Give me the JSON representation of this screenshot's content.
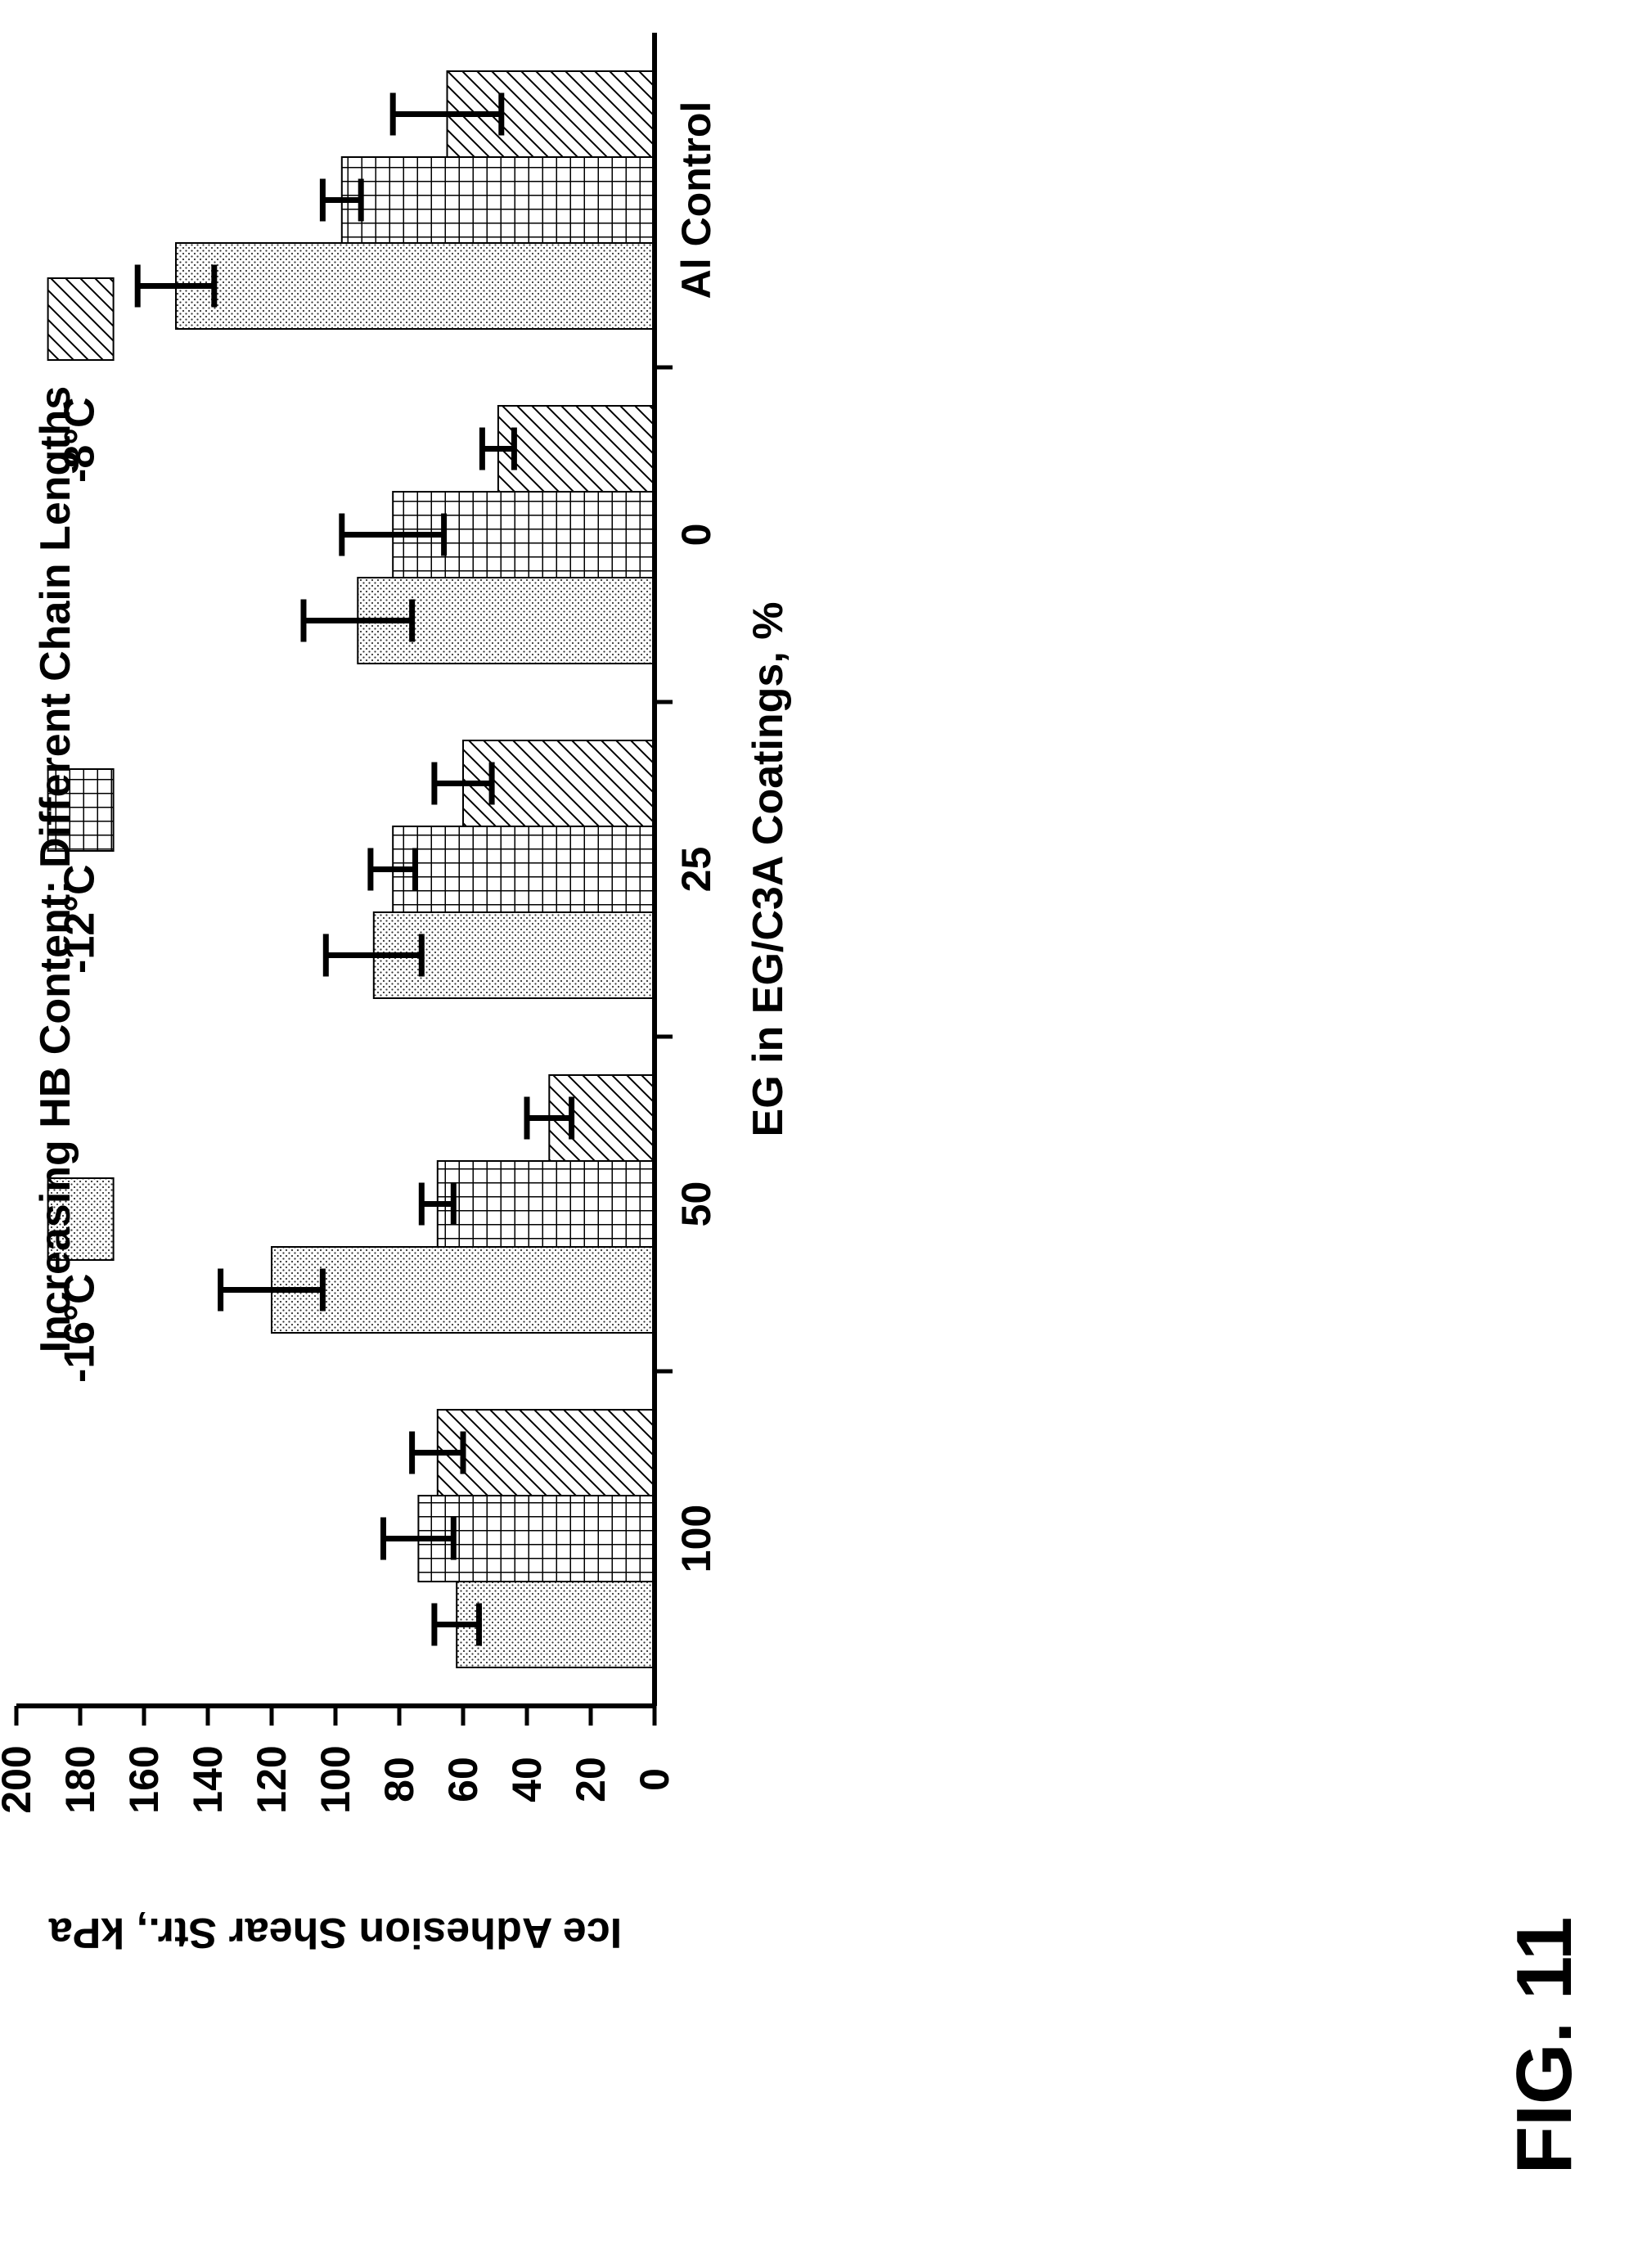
{
  "figure_label": "FIG. 11",
  "chart_data": {
    "type": "bar",
    "title": "Increasing HB Content: Different Chain Lengths",
    "xlabel": "EG in EG/C3A Coatings, %",
    "ylabel": "Ice Adhesion Shear Str., kPa",
    "categories": [
      "Al Control",
      "0",
      "25",
      "50",
      "100"
    ],
    "ylim": [
      0,
      200
    ],
    "yticks": [
      0,
      20,
      40,
      60,
      80,
      100,
      120,
      140,
      160,
      180,
      200
    ],
    "orientation": "rotated 90° clockwise (value axis runs left-to-right along the top, categories run top-to-bottom)",
    "legend_placement": "inside plot, beside the category axis",
    "series": [
      {
        "name": "-8°C",
        "pattern": "diagonal-hatch",
        "values": [
          65,
          49,
          60,
          33,
          68
        ],
        "errors": [
          17,
          5,
          9,
          7,
          8
        ]
      },
      {
        "name": "-12°C",
        "pattern": "grid",
        "values": [
          98,
          82,
          82,
          68,
          74
        ],
        "errors": [
          6,
          16,
          7,
          5,
          11
        ]
      },
      {
        "name": "-16°C",
        "pattern": "dots",
        "values": [
          150,
          93,
          88,
          120,
          62
        ],
        "errors": [
          12,
          17,
          15,
          16,
          7
        ]
      }
    ],
    "grid": false
  }
}
